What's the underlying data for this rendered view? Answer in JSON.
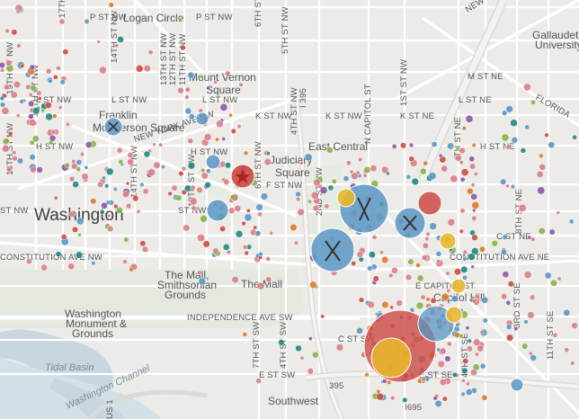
{
  "map": {
    "city_label": "Washington",
    "place_labels": [
      {
        "name": "logan-circle-label",
        "text": "Logan Circle"
      },
      {
        "name": "gallaudet-label",
        "text": "Gallaudet University"
      },
      {
        "name": "mount-vernon-square-label",
        "text": "Mount Vernon Square"
      },
      {
        "name": "franklin-mcpherson-label",
        "text": "Franklin McPherson Square"
      },
      {
        "name": "judiciary-square-label",
        "text": "Judiciary Square"
      },
      {
        "name": "east-central-label",
        "text": "East Central"
      },
      {
        "name": "capitol-hill-label",
        "text": "Capitol Hill"
      },
      {
        "name": "mall-smithsonian-label",
        "text": "The Mall, Smithsonian Grounds"
      },
      {
        "name": "the-mall-label",
        "text": "The Mall"
      },
      {
        "name": "washington-monument-label",
        "text": "Washington Monument & Grounds"
      },
      {
        "name": "southwest-label",
        "text": "Southwest"
      },
      {
        "name": "tidal-basin-label",
        "text": "Tidal Basin"
      },
      {
        "name": "washington-channel-label",
        "text": "Washington Channel"
      }
    ],
    "street_labels": [
      "P ST NW",
      "17TH ST NW",
      "14TH ST NW",
      "6TH ST NW",
      "5TH ST NW",
      "NEW YORK AVE NE",
      "M ST NE",
      "NEW YORK AVE NW",
      "13TH ST NW",
      "12TH ST NW",
      "11TH ST NW",
      "L ST NW",
      "L ST NE",
      "K ST NW",
      "K ST NE",
      "4TH ST NW",
      "1ST ST NW",
      "N CAPITOL ST",
      "1ST ST NE",
      "FLORIDA AVE NE",
      "H ST NW",
      "H ST NE",
      "F ST NW",
      "2ND ST NW",
      "I 395",
      "4TH ST NE",
      "8TH ST NE",
      "C ST NE",
      "CONSTITUTION AVE NW",
      "CONSTITUTION AVE NE",
      "E CAPITOL ST",
      "INDEPENDENCE AVE SW",
      "C ST SW",
      "E ST SW",
      "4TH ST SW",
      "7TH ST SW",
      "3RD ST SE",
      "4TH ST SE",
      "11TH ST SE",
      "E ST SE",
      "I 695",
      "I 395",
      "US 1",
      "18TH ST NW",
      "19TH ST NW",
      "10TH ST NW",
      "9TH ST NW",
      "3RD ST NW"
    ],
    "colors": {
      "land": "#ecebe8",
      "park": "#dfe7dc",
      "water": "#c8d6e0",
      "road": "#ffffff",
      "highway": "#e0dedb",
      "marker_pink": "#d98088",
      "marker_blue": "#5b97c4",
      "marker_red": "#cd4a44",
      "marker_orange": "#dd7a28",
      "marker_yellow": "#e8b82c",
      "marker_teal": "#1e8a82",
      "marker_purple": "#8c57a6",
      "marker_green": "#88b24a"
    },
    "icons": [
      "fork-knife-icon",
      "star-icon",
      "pin-icon"
    ]
  }
}
